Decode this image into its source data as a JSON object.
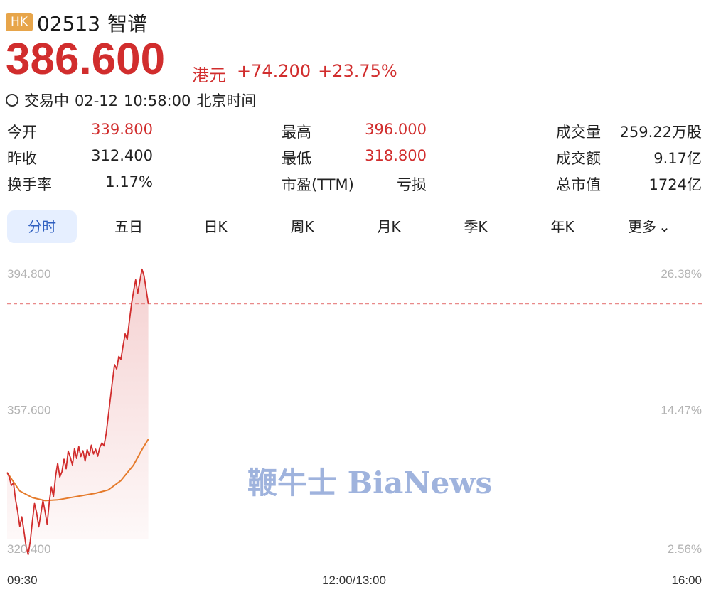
{
  "header": {
    "market_badge": "HK",
    "code": "02513",
    "name": "智谱",
    "price": "386.600",
    "currency": "港元",
    "change": "+74.200",
    "change_pct": "+23.75%",
    "status": "交易中",
    "date": "02-12",
    "time": "10:58:00",
    "timezone": "北京时间"
  },
  "stats": [
    {
      "label": "今开",
      "value": "339.800",
      "color": "#d12d2d"
    },
    {
      "label": "昨收",
      "value": "312.400",
      "color": "#222222"
    },
    {
      "label": "换手率",
      "value": "1.17%",
      "color": "#222222"
    },
    {
      "label": "最高",
      "value": "396.000",
      "color": "#d12d2d"
    },
    {
      "label": "最低",
      "value": "318.800",
      "color": "#d12d2d"
    },
    {
      "label": "市盈(TTM)",
      "value": "亏损",
      "color": "#222222"
    },
    {
      "label": "成交量",
      "value": "259.22万股",
      "color": "#222222"
    },
    {
      "label": "成交额",
      "value": "9.17亿",
      "color": "#222222"
    },
    {
      "label": "总市值",
      "value": "1724亿",
      "color": "#222222"
    }
  ],
  "tabs": [
    "分时",
    "五日",
    "日K",
    "周K",
    "月K",
    "季K",
    "年K",
    "更多"
  ],
  "active_tab": 0,
  "watermark": "鞭牛士 BiaNews",
  "colors": {
    "up": "#d12d2d",
    "avg_line": "#e57b2c",
    "active_tab_bg": "#e6efff",
    "active_tab_text": "#2f5fc0"
  },
  "chart_data": {
    "type": "line",
    "y_labels_left": [
      "394.800",
      "357.600",
      "320.400"
    ],
    "y_labels_right": [
      "26.38%",
      "14.47%",
      "2.56%"
    ],
    "x_labels": [
      "09:30",
      "12:00/13:00",
      "16:00"
    ],
    "ylim": [
      320.4,
      394.8
    ],
    "x_range": [
      "09:30",
      "16:00"
    ],
    "x_total_minutes": 330,
    "reference_price": 386.6,
    "series": [
      {
        "values": [
          [
            0,
            341.0
          ],
          [
            1,
            339.8
          ],
          [
            2,
            337.5
          ],
          [
            3,
            338.2
          ],
          [
            4,
            333.6
          ],
          [
            5,
            330.5
          ],
          [
            6,
            326.4
          ],
          [
            7,
            329.0
          ],
          [
            8,
            325.1
          ],
          [
            9,
            321.0
          ],
          [
            10,
            318.8
          ],
          [
            11,
            322.5
          ],
          [
            12,
            328.0
          ],
          [
            13,
            332.6
          ],
          [
            14,
            330.1
          ],
          [
            15,
            326.3
          ],
          [
            16,
            329.8
          ],
          [
            17,
            333.4
          ],
          [
            18,
            330.5
          ],
          [
            19,
            327.0
          ],
          [
            20,
            333.0
          ],
          [
            21,
            337.1
          ],
          [
            22,
            334.5
          ],
          [
            23,
            340.0
          ],
          [
            24,
            343.5
          ],
          [
            25,
            339.8
          ],
          [
            26,
            341.2
          ],
          [
            27,
            344.6
          ],
          [
            28,
            342.0
          ],
          [
            29,
            346.8
          ],
          [
            30,
            345.1
          ],
          [
            31,
            343.0
          ],
          [
            32,
            347.5
          ],
          [
            33,
            344.8
          ],
          [
            34,
            348.0
          ],
          [
            35,
            345.3
          ],
          [
            36,
            346.9
          ],
          [
            37,
            344.1
          ],
          [
            38,
            347.2
          ],
          [
            39,
            345.6
          ],
          [
            40,
            348.4
          ],
          [
            41,
            346.0
          ],
          [
            42,
            347.3
          ],
          [
            43,
            345.4
          ],
          [
            44,
            347.8
          ],
          [
            45,
            349.0
          ],
          [
            46,
            348.2
          ],
          [
            47,
            351.5
          ],
          [
            48,
            356.3
          ],
          [
            49,
            361.0
          ],
          [
            50,
            365.8
          ],
          [
            51,
            370.2
          ],
          [
            52,
            369.0
          ],
          [
            53,
            372.4
          ],
          [
            54,
            371.6
          ],
          [
            55,
            375.2
          ],
          [
            56,
            378.5
          ],
          [
            57,
            377.0
          ],
          [
            58,
            381.9
          ],
          [
            59,
            386.5
          ],
          [
            60,
            390.0
          ],
          [
            61,
            393.1
          ],
          [
            62,
            389.5
          ],
          [
            63,
            392.8
          ],
          [
            64,
            396.0
          ],
          [
            65,
            394.2
          ],
          [
            66,
            390.5
          ],
          [
            67,
            386.6
          ]
        ]
      },
      {
        "values": [
          [
            0,
            341.0
          ],
          [
            6,
            336.0
          ],
          [
            12,
            334.2
          ],
          [
            18,
            333.4
          ],
          [
            24,
            333.6
          ],
          [
            30,
            334.2
          ],
          [
            36,
            334.8
          ],
          [
            42,
            335.4
          ],
          [
            48,
            336.3
          ],
          [
            54,
            338.8
          ],
          [
            60,
            343.0
          ],
          [
            64,
            347.2
          ],
          [
            67,
            350.0
          ]
        ]
      }
    ]
  }
}
